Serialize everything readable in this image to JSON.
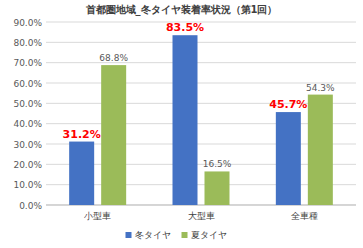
{
  "chart_data": {
    "type": "bar",
    "title": "首都圏地域_冬タイヤ装着率状況（第1回）",
    "categories": [
      "小型車",
      "大型車",
      "全車種"
    ],
    "series": [
      {
        "name": "冬タイヤ",
        "color": "#4472c4",
        "values": [
          31.2,
          83.5,
          45.7
        ],
        "value_labels": [
          "31.2%",
          "83.5%",
          "45.7%"
        ]
      },
      {
        "name": "夏タイヤ",
        "color": "#9bbb59",
        "values": [
          68.8,
          16.5,
          54.3
        ],
        "value_labels": [
          "68.8%",
          "16.5%",
          "54.3%"
        ]
      }
    ],
    "ylim": [
      0,
      90
    ],
    "yticks": [
      {
        "value": 0,
        "label": "0.0%"
      },
      {
        "value": 10,
        "label": "10.0%"
      },
      {
        "value": 20,
        "label": "20.0%"
      },
      {
        "value": 30,
        "label": "30.0%"
      },
      {
        "value": 40,
        "label": "40.0%"
      },
      {
        "value": 50,
        "label": "50.0%"
      },
      {
        "value": 60,
        "label": "60.0%"
      },
      {
        "value": 70,
        "label": "70.0%"
      },
      {
        "value": 80,
        "label": "80.0%"
      },
      {
        "value": 90,
        "label": "90.0%"
      }
    ],
    "grid": true,
    "data_labels": true,
    "legend": "bottom"
  }
}
